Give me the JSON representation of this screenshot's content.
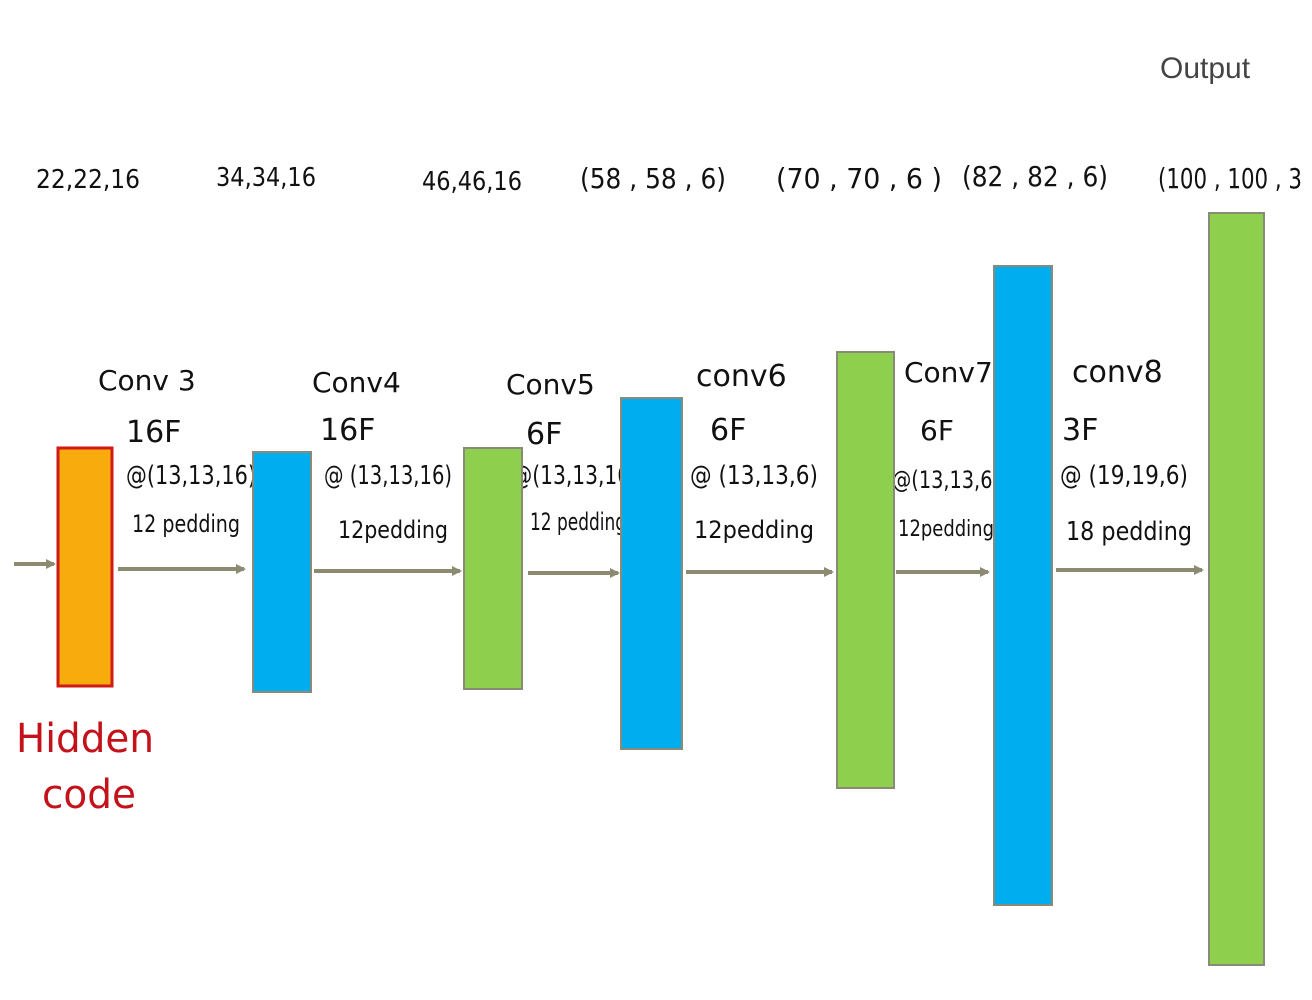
{
  "output_label": "Output",
  "input_label_lines": [
    "Hidden",
    "code"
  ],
  "shape_labels": [
    "22,22,16",
    "34,34,16",
    "46,46,16",
    "(58 , 58 , 6)",
    "(70 , 70 , 6 )",
    "(82 , 82 , 6)",
    "(100 , 100 , 3"
  ],
  "layers": [
    {
      "name": "Conv 3",
      "filters": "16F",
      "kernel": "@(13,13,16)",
      "padding": "12 pedding"
    },
    {
      "name": "Conv4",
      "filters": "16F",
      "kernel": "@ (13,13,16)",
      "padding": "12pedding"
    },
    {
      "name": "Conv5",
      "filters": "6F",
      "kernel": "@(13,13,16)",
      "padding": "12 pedding"
    },
    {
      "name": "conv6",
      "filters": "6F",
      "kernel": "@ (13,13,6)",
      "padding": "12pedding"
    },
    {
      "name": "Conv7",
      "filters": "6F",
      "kernel": "@(13,13,6)",
      "padding": "12pedding"
    },
    {
      "name": "conv8",
      "filters": "3F",
      "kernel": "@ (19,19,6)",
      "padding": "18 pedding"
    }
  ],
  "colors": {
    "input": "#f8ab0c",
    "input_border": "#d11a16",
    "blue": "#00adef",
    "green": "#8ed04d",
    "border": "#8a8a78",
    "arrow": "#8c8b72",
    "hidden_text": "#c4121a"
  }
}
